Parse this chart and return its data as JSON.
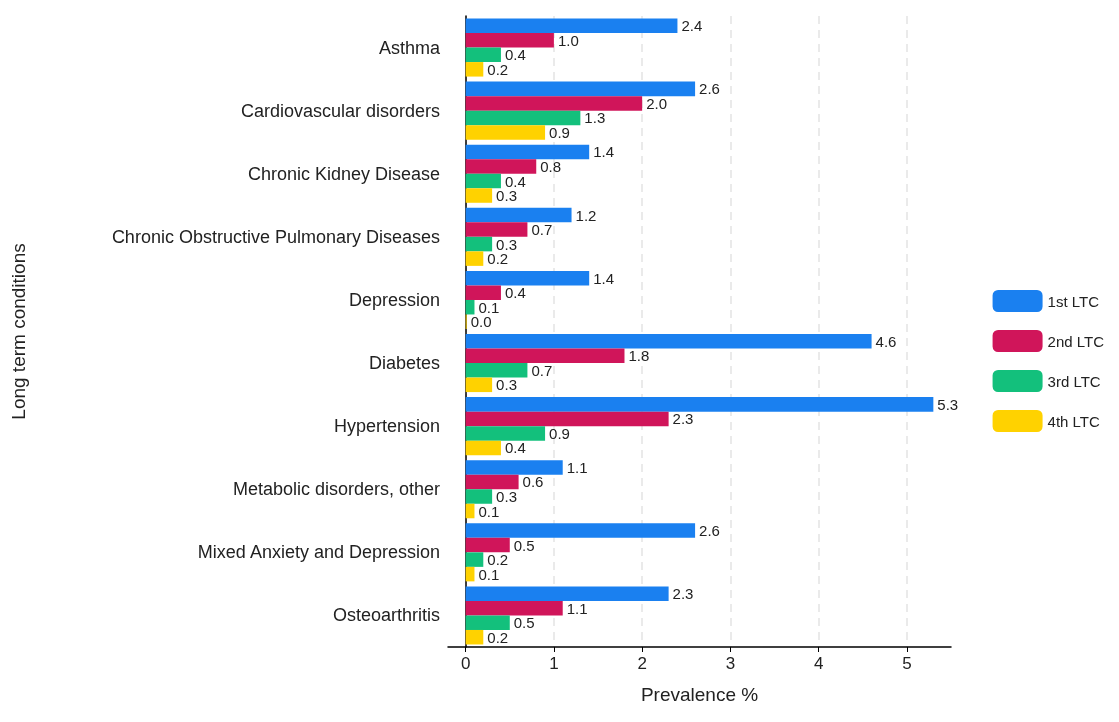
{
  "chart_data": {
    "type": "bar",
    "orientation": "horizontal",
    "xlabel": "Prevalence %",
    "ylabel": "Long term conditions",
    "categories": [
      "Asthma",
      "Cardiovascular disorders",
      "Chronic Kidney Disease",
      "Chronic Obstructive Pulmonary Diseases",
      "Depression",
      "Diabetes",
      "Hypertension",
      "Metabolic disorders, other",
      "Mixed Anxiety and Depression",
      "Osteoarthritis"
    ],
    "series": [
      {
        "name": "1st LTC",
        "color": "#1a80f0",
        "values": [
          2.4,
          2.6,
          1.4,
          1.2,
          1.4,
          4.6,
          5.3,
          1.1,
          2.6,
          2.3
        ],
        "value_labels": [
          "2.4",
          "2.6",
          "1.4",
          "1.2",
          "1.4",
          "4.6",
          "5.3",
          "1.1",
          "2.6",
          "2.3"
        ]
      },
      {
        "name": "2nd LTC",
        "color": "#d0155a",
        "values": [
          1.0,
          2.0,
          0.8,
          0.7,
          0.4,
          1.8,
          2.3,
          0.6,
          0.5,
          1.1
        ],
        "value_labels": [
          "1.0",
          "2.0",
          "0.8",
          "0.7",
          "0.4",
          "1.8",
          "2.3",
          "0.6",
          "0.5",
          "1.1"
        ]
      },
      {
        "name": "3rd LTC",
        "color": "#13c07c",
        "values": [
          0.4,
          1.3,
          0.4,
          0.3,
          0.1,
          0.7,
          0.9,
          0.3,
          0.2,
          0.5
        ],
        "value_labels": [
          "0.4",
          "1.3",
          "0.4",
          "0.3",
          "0.1",
          "0.7",
          "0.9",
          "0.3",
          "0.2",
          "0.5"
        ]
      },
      {
        "name": "4th LTC",
        "color": "#ffd200",
        "values": [
          0.2,
          0.9,
          0.3,
          0.2,
          0.0,
          0.3,
          0.4,
          0.1,
          0.1,
          0.2
        ],
        "value_labels": [
          "0.2",
          "0.9",
          "0.3",
          "0.2",
          "0.0",
          "0.3",
          "0.4",
          "0.1",
          "0.1",
          "0.2"
        ]
      }
    ],
    "xlim": [
      -0.2,
      5.5
    ],
    "xticks": [
      0,
      1,
      2,
      3,
      4,
      5
    ],
    "grid": "x",
    "legend": "right"
  }
}
